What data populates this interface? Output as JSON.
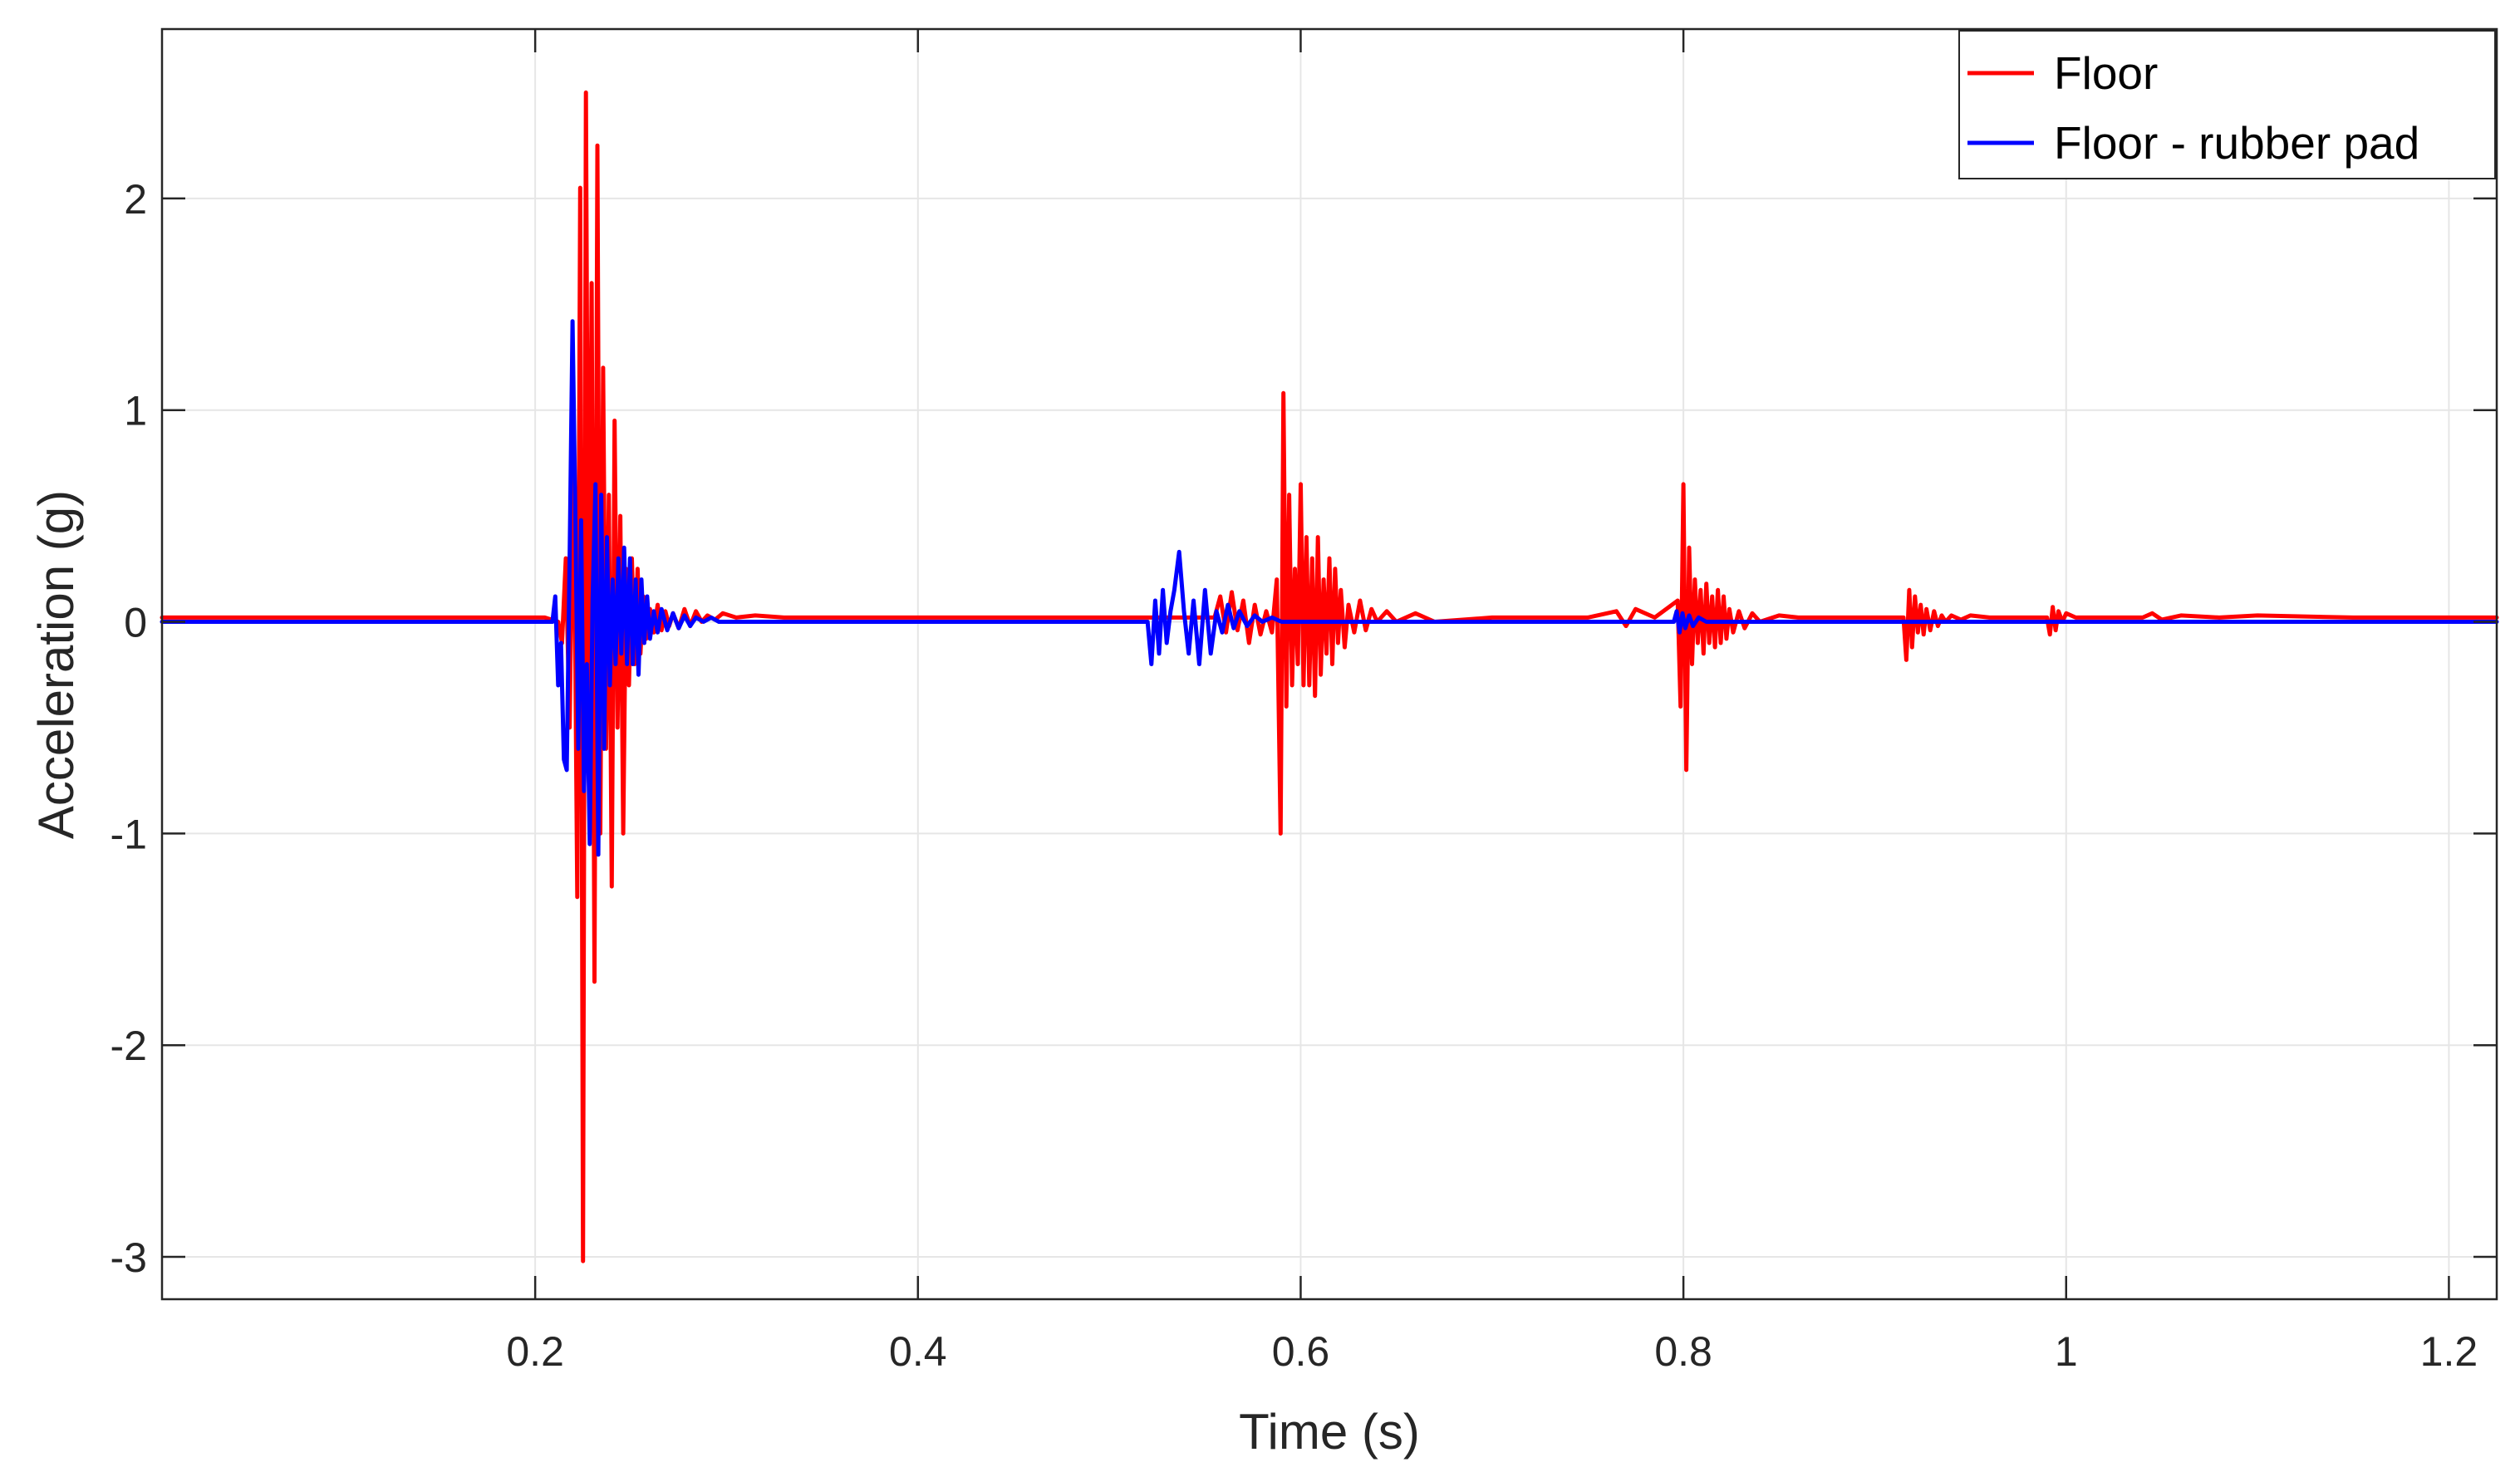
{
  "chart_data": {
    "type": "line",
    "xlabel": "Time (s)",
    "ylabel": "Acceleration (g)",
    "xlim": [
      0.005,
      1.225
    ],
    "ylim": [
      -3.2,
      2.8
    ],
    "xticks": [
      0.2,
      0.4,
      0.6,
      0.8,
      1,
      1.2
    ],
    "xtick_labels": [
      "0.2",
      "0.4",
      "0.6",
      "0.8",
      "1",
      "1.2"
    ],
    "yticks": [
      -3,
      -2,
      -1,
      0,
      1,
      2
    ],
    "ytick_labels": [
      "-3",
      "-2",
      "-1",
      "0",
      "1",
      "2"
    ],
    "grid": true,
    "legend_position": "top-right",
    "series": [
      {
        "name": "Floor",
        "color": "#ff0000",
        "x": [
          0.005,
          0.1,
          0.205,
          0.212,
          0.214,
          0.216,
          0.218,
          0.22,
          0.222,
          0.2235,
          0.225,
          0.2265,
          0.228,
          0.2295,
          0.231,
          0.2325,
          0.234,
          0.2355,
          0.237,
          0.2385,
          0.24,
          0.2415,
          0.243,
          0.2445,
          0.246,
          0.2475,
          0.249,
          0.2505,
          0.252,
          0.2535,
          0.255,
          0.2565,
          0.258,
          0.26,
          0.262,
          0.264,
          0.266,
          0.268,
          0.27,
          0.272,
          0.275,
          0.278,
          0.281,
          0.284,
          0.287,
          0.29,
          0.294,
          0.298,
          0.305,
          0.315,
          0.33,
          0.4,
          0.5,
          0.555,
          0.558,
          0.561,
          0.564,
          0.567,
          0.57,
          0.573,
          0.576,
          0.579,
          0.582,
          0.585,
          0.5875,
          0.5895,
          0.591,
          0.5925,
          0.594,
          0.5955,
          0.597,
          0.5985,
          0.6,
          0.6015,
          0.603,
          0.6045,
          0.606,
          0.6075,
          0.609,
          0.6105,
          0.612,
          0.6135,
          0.615,
          0.6165,
          0.618,
          0.6195,
          0.621,
          0.623,
          0.625,
          0.628,
          0.631,
          0.634,
          0.637,
          0.64,
          0.645,
          0.65,
          0.66,
          0.67,
          0.7,
          0.75,
          0.765,
          0.77,
          0.775,
          0.785,
          0.797,
          0.7985,
          0.8,
          0.8015,
          0.803,
          0.8045,
          0.806,
          0.8075,
          0.809,
          0.8105,
          0.812,
          0.8135,
          0.815,
          0.8165,
          0.818,
          0.8195,
          0.821,
          0.8225,
          0.824,
          0.826,
          0.829,
          0.832,
          0.836,
          0.84,
          0.85,
          0.86,
          0.9,
          0.915,
          0.9165,
          0.918,
          0.9195,
          0.921,
          0.9225,
          0.924,
          0.9255,
          0.927,
          0.929,
          0.931,
          0.933,
          0.935,
          0.937,
          0.94,
          0.945,
          0.95,
          0.96,
          0.99,
          0.9915,
          0.993,
          0.9945,
          0.996,
          0.998,
          1.0,
          1.005,
          1.02,
          1.04,
          1.045,
          1.05,
          1.06,
          1.08,
          1.1,
          1.15,
          1.225
        ],
        "y": [
          0.02,
          0.02,
          0.02,
          0.0,
          -0.1,
          0.3,
          -0.5,
          0.9,
          -1.3,
          2.05,
          -3.02,
          2.5,
          -0.5,
          1.6,
          -1.7,
          2.25,
          -1.0,
          1.2,
          -0.6,
          0.6,
          -1.25,
          0.95,
          -0.5,
          0.5,
          -1.0,
          0.25,
          -0.3,
          0.3,
          -0.2,
          0.25,
          -0.15,
          0.12,
          -0.08,
          0.06,
          -0.05,
          0.08,
          -0.04,
          0.05,
          -0.02,
          0.04,
          -0.03,
          0.06,
          -0.02,
          0.05,
          0.0,
          0.03,
          0.01,
          0.04,
          0.02,
          0.03,
          0.02,
          0.02,
          0.02,
          0.02,
          0.12,
          -0.05,
          0.14,
          -0.04,
          0.1,
          -0.1,
          0.08,
          -0.06,
          0.05,
          -0.05,
          0.2,
          -1.0,
          1.08,
          -0.4,
          0.6,
          -0.3,
          0.25,
          -0.2,
          0.65,
          -0.3,
          0.4,
          -0.3,
          0.3,
          -0.35,
          0.4,
          -0.25,
          0.2,
          -0.15,
          0.3,
          -0.2,
          0.25,
          -0.1,
          0.15,
          -0.12,
          0.08,
          -0.05,
          0.1,
          -0.04,
          0.06,
          0.0,
          0.05,
          0.0,
          0.04,
          0.0,
          0.02,
          0.02,
          0.05,
          -0.02,
          0.06,
          0.02,
          0.1,
          -0.4,
          0.65,
          -0.7,
          0.35,
          -0.2,
          0.2,
          -0.1,
          0.15,
          -0.15,
          0.18,
          -0.1,
          0.12,
          -0.12,
          0.15,
          -0.1,
          0.12,
          -0.08,
          0.06,
          -0.05,
          0.05,
          -0.03,
          0.04,
          0.0,
          0.03,
          0.02,
          0.02,
          0.02,
          -0.18,
          0.15,
          -0.12,
          0.12,
          -0.05,
          0.08,
          -0.06,
          0.06,
          -0.04,
          0.05,
          -0.02,
          0.03,
          0.0,
          0.03,
          0.01,
          0.03,
          0.02,
          0.02,
          -0.06,
          0.07,
          -0.04,
          0.05,
          0.0,
          0.04,
          0.02,
          0.02,
          0.02,
          0.04,
          0.01,
          0.03,
          0.02,
          0.03,
          0.02,
          0.02
        ]
      },
      {
        "name": "Floor - rubber pad",
        "color": "#0000ff",
        "x": [
          0.005,
          0.1,
          0.2,
          0.209,
          0.2105,
          0.212,
          0.2135,
          0.215,
          0.2165,
          0.218,
          0.2195,
          0.221,
          0.2225,
          0.224,
          0.2255,
          0.227,
          0.2285,
          0.23,
          0.2315,
          0.233,
          0.2345,
          0.236,
          0.2375,
          0.239,
          0.2405,
          0.242,
          0.2435,
          0.245,
          0.2465,
          0.248,
          0.2495,
          0.251,
          0.2525,
          0.254,
          0.2555,
          0.257,
          0.2585,
          0.26,
          0.262,
          0.264,
          0.266,
          0.269,
          0.272,
          0.275,
          0.278,
          0.281,
          0.284,
          0.288,
          0.292,
          0.296,
          0.3,
          0.31,
          0.35,
          0.45,
          0.52,
          0.522,
          0.524,
          0.526,
          0.528,
          0.53,
          0.532,
          0.534,
          0.5365,
          0.539,
          0.5415,
          0.544,
          0.547,
          0.55,
          0.553,
          0.556,
          0.559,
          0.562,
          0.565,
          0.568,
          0.572,
          0.576,
          0.58,
          0.585,
          0.59,
          0.6,
          0.7,
          0.795,
          0.7965,
          0.798,
          0.7995,
          0.801,
          0.803,
          0.805,
          0.808,
          0.812,
          0.82,
          0.9,
          1.0,
          1.1,
          1.225
        ],
        "y": [
          0.0,
          0.0,
          0.0,
          0.0,
          0.12,
          -0.3,
          -0.1,
          -0.65,
          -0.7,
          0.3,
          1.42,
          0.5,
          -0.6,
          0.48,
          -0.8,
          -0.2,
          -1.05,
          0.1,
          0.65,
          -1.1,
          0.6,
          -0.6,
          0.4,
          -0.3,
          0.2,
          -0.2,
          0.3,
          -0.15,
          0.35,
          -0.2,
          0.3,
          -0.2,
          0.2,
          -0.25,
          0.2,
          -0.1,
          0.12,
          -0.08,
          0.05,
          -0.05,
          0.06,
          -0.04,
          0.04,
          -0.03,
          0.03,
          -0.02,
          0.02,
          0.0,
          0.02,
          0.0,
          0.0,
          0.0,
          0.0,
          0.0,
          0.0,
          -0.2,
          0.1,
          -0.15,
          0.15,
          -0.1,
          0.05,
          0.15,
          0.33,
          0.05,
          -0.15,
          0.1,
          -0.2,
          0.15,
          -0.15,
          0.05,
          -0.05,
          0.08,
          -0.03,
          0.05,
          -0.02,
          0.03,
          0.0,
          0.02,
          0.0,
          0.0,
          0.0,
          0.0,
          0.05,
          -0.05,
          0.04,
          -0.03,
          0.03,
          -0.02,
          0.02,
          0.0,
          0.0,
          0.0,
          0.0,
          0.0,
          0.0
        ]
      }
    ]
  }
}
